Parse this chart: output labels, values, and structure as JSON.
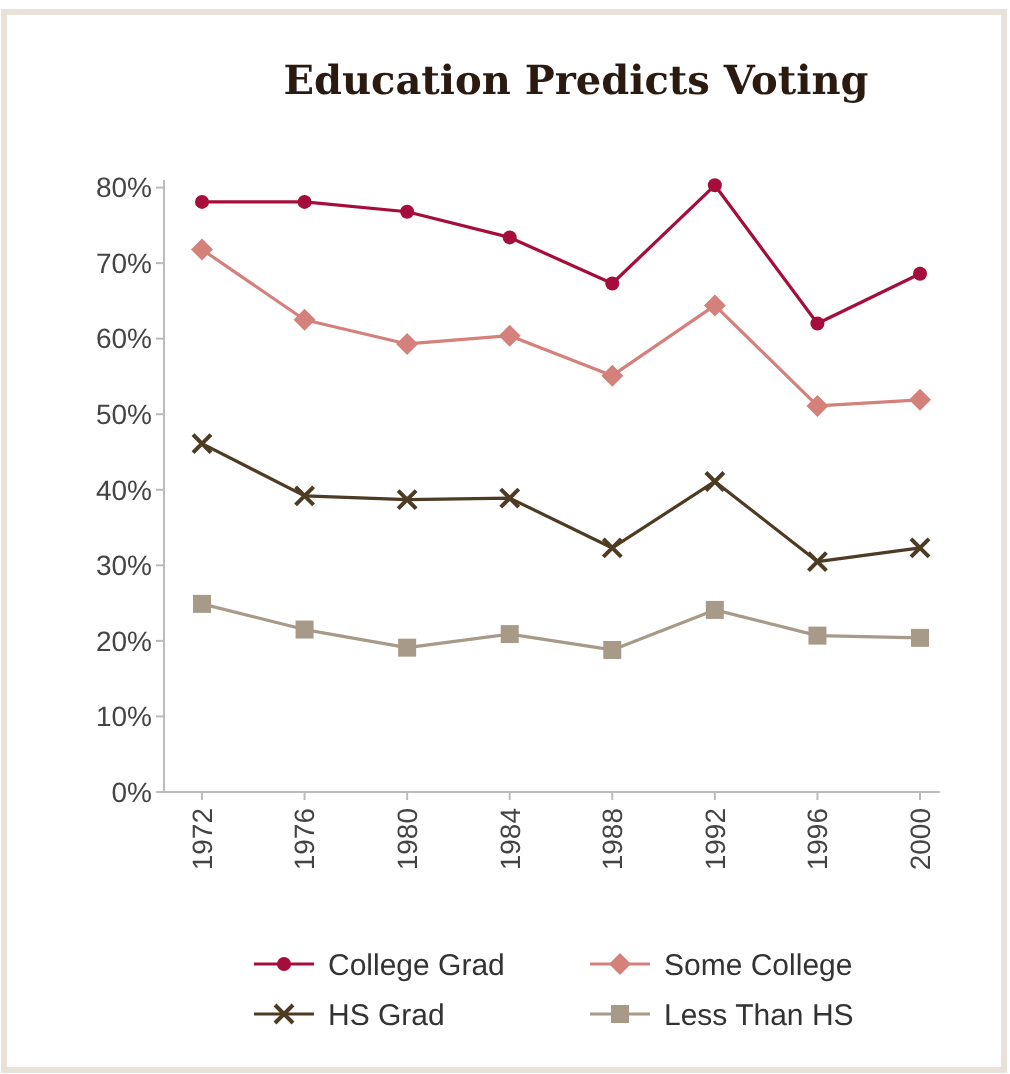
{
  "chart_data": {
    "type": "line",
    "title": "Education Predicts Voting",
    "categories": [
      "1972",
      "1976",
      "1980",
      "1984",
      "1988",
      "1992",
      "1996",
      "2000"
    ],
    "series": [
      {
        "name": "College Grad",
        "color": "#a50d3a",
        "marker": "circle",
        "values": [
          0.781,
          0.781,
          0.768,
          0.734,
          0.673,
          0.803,
          0.62,
          0.686
        ]
      },
      {
        "name": "Some College",
        "color": "#d4817c",
        "marker": "diamond",
        "values": [
          0.718,
          0.625,
          0.593,
          0.604,
          0.551,
          0.644,
          0.511,
          0.519
        ]
      },
      {
        "name": "HS Grad",
        "color": "#4e3b23",
        "marker": "cross",
        "values": [
          0.461,
          0.392,
          0.387,
          0.389,
          0.323,
          0.411,
          0.305,
          0.323
        ]
      },
      {
        "name": "Less Than HS",
        "color": "#a89a88",
        "marker": "square",
        "values": [
          0.249,
          0.215,
          0.191,
          0.209,
          0.188,
          0.241,
          0.207,
          0.204
        ]
      }
    ],
    "ylim": [
      0,
      0.81
    ],
    "yticks": [
      {
        "value": 0,
        "label": "0%"
      },
      {
        "value": 0.1,
        "label": "10%"
      },
      {
        "value": 0.2,
        "label": "20%"
      },
      {
        "value": 0.3,
        "label": "30%"
      },
      {
        "value": 0.4,
        "label": "40%"
      },
      {
        "value": 0.5,
        "label": "50%"
      },
      {
        "value": 0.6,
        "label": "60%"
      },
      {
        "value": 0.7,
        "label": "70%"
      },
      {
        "value": 0.8,
        "label": "80%"
      }
    ],
    "grid": false,
    "legend": "bottom",
    "line_style": "solid"
  }
}
